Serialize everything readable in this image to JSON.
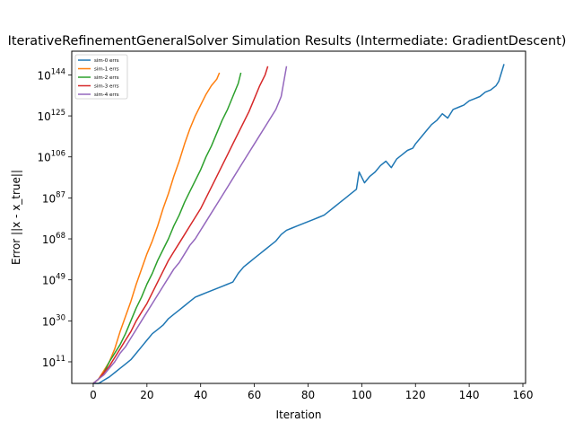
{
  "chart_data": {
    "type": "line",
    "title": "IterativeRefinementGeneralSolver Simulation Results (Intermediate: GradientDescent)",
    "xlabel": "Iteration",
    "ylabel": "Error ||x - x_true||",
    "xlim": [
      -8,
      161
    ],
    "x_ticks": [
      0,
      20,
      40,
      60,
      80,
      100,
      120,
      140,
      160
    ],
    "y_scale": "log",
    "ylim_exponent": [
      1,
      155
    ],
    "y_tick_exponents": [
      11,
      30,
      49,
      68,
      87,
      106,
      125,
      144
    ],
    "y_tick_labels": [
      "10",
      "10",
      "10",
      "10",
      "10",
      "10",
      "10",
      "10"
    ],
    "y_tick_superscripts": [
      "11",
      "30",
      "49",
      "68",
      "87",
      "106",
      "125",
      "144"
    ],
    "grid": false,
    "legend_position": "top-left",
    "series": [
      {
        "name": "sim-0 errs",
        "color": "#1f77b4",
        "log10_values": [
          [
            0,
            1
          ],
          [
            2,
            1
          ],
          [
            4,
            2.5
          ],
          [
            6,
            4
          ],
          [
            8,
            6
          ],
          [
            10,
            8
          ],
          [
            12,
            10
          ],
          [
            14,
            12
          ],
          [
            16,
            15
          ],
          [
            18,
            18
          ],
          [
            20,
            21
          ],
          [
            22,
            24
          ],
          [
            24,
            26
          ],
          [
            26,
            28
          ],
          [
            28,
            31
          ],
          [
            30,
            33
          ],
          [
            32,
            35
          ],
          [
            34,
            37
          ],
          [
            36,
            39
          ],
          [
            38,
            41
          ],
          [
            40,
            42
          ],
          [
            42,
            43
          ],
          [
            44,
            44
          ],
          [
            46,
            45
          ],
          [
            48,
            46
          ],
          [
            50,
            47
          ],
          [
            52,
            48
          ],
          [
            54,
            52
          ],
          [
            56,
            55
          ],
          [
            58,
            57
          ],
          [
            60,
            59
          ],
          [
            62,
            61
          ],
          [
            64,
            63
          ],
          [
            66,
            65
          ],
          [
            68,
            67
          ],
          [
            70,
            70
          ],
          [
            72,
            72
          ],
          [
            74,
            73
          ],
          [
            76,
            74
          ],
          [
            78,
            75
          ],
          [
            80,
            76
          ],
          [
            82,
            77
          ],
          [
            84,
            78
          ],
          [
            86,
            79
          ],
          [
            88,
            81
          ],
          [
            90,
            83
          ],
          [
            92,
            85
          ],
          [
            94,
            87
          ],
          [
            96,
            89
          ],
          [
            98,
            91
          ],
          [
            99,
            99
          ],
          [
            101,
            94
          ],
          [
            103,
            97
          ],
          [
            105,
            99
          ],
          [
            107,
            102
          ],
          [
            109,
            104
          ],
          [
            111,
            101
          ],
          [
            113,
            105
          ],
          [
            115,
            107
          ],
          [
            117,
            109
          ],
          [
            119,
            110
          ],
          [
            120,
            112
          ],
          [
            122,
            115
          ],
          [
            124,
            118
          ],
          [
            126,
            121
          ],
          [
            128,
            123
          ],
          [
            130,
            126
          ],
          [
            132,
            124
          ],
          [
            134,
            128
          ],
          [
            136,
            129
          ],
          [
            138,
            130
          ],
          [
            140,
            132
          ],
          [
            142,
            133
          ],
          [
            144,
            134
          ],
          [
            146,
            136
          ],
          [
            148,
            137
          ],
          [
            150,
            139
          ],
          [
            151,
            141
          ],
          [
            153,
            149
          ]
        ]
      },
      {
        "name": "sim-1 errs",
        "color": "#ff7f0e",
        "log10_values": [
          [
            0,
            1
          ],
          [
            2,
            3
          ],
          [
            4,
            7
          ],
          [
            6,
            11
          ],
          [
            8,
            17
          ],
          [
            10,
            25
          ],
          [
            12,
            32
          ],
          [
            14,
            39
          ],
          [
            16,
            47
          ],
          [
            18,
            54
          ],
          [
            20,
            61
          ],
          [
            22,
            67
          ],
          [
            24,
            74
          ],
          [
            26,
            82
          ],
          [
            28,
            89
          ],
          [
            30,
            97
          ],
          [
            32,
            104
          ],
          [
            34,
            112
          ],
          [
            36,
            119
          ],
          [
            38,
            125
          ],
          [
            40,
            130
          ],
          [
            42,
            135
          ],
          [
            44,
            139
          ],
          [
            46,
            142
          ],
          [
            47,
            145
          ]
        ]
      },
      {
        "name": "sim-2 errs",
        "color": "#2ca02c",
        "log10_values": [
          [
            0,
            1
          ],
          [
            2,
            3
          ],
          [
            4,
            6
          ],
          [
            6,
            11
          ],
          [
            8,
            15
          ],
          [
            10,
            19
          ],
          [
            12,
            24
          ],
          [
            14,
            30
          ],
          [
            16,
            36
          ],
          [
            18,
            41
          ],
          [
            20,
            47
          ],
          [
            22,
            52
          ],
          [
            24,
            58
          ],
          [
            26,
            63
          ],
          [
            28,
            68
          ],
          [
            30,
            74
          ],
          [
            32,
            79
          ],
          [
            34,
            85
          ],
          [
            36,
            90
          ],
          [
            38,
            95
          ],
          [
            40,
            100
          ],
          [
            42,
            106
          ],
          [
            44,
            111
          ],
          [
            46,
            117
          ],
          [
            48,
            123
          ],
          [
            50,
            128
          ],
          [
            52,
            134
          ],
          [
            54,
            140
          ],
          [
            55,
            145
          ]
        ]
      },
      {
        "name": "sim-3 errs",
        "color": "#d62728",
        "log10_values": [
          [
            0,
            1
          ],
          [
            2,
            3
          ],
          [
            4,
            6
          ],
          [
            6,
            9
          ],
          [
            8,
            13
          ],
          [
            10,
            17
          ],
          [
            12,
            21
          ],
          [
            14,
            25
          ],
          [
            16,
            30
          ],
          [
            18,
            34
          ],
          [
            20,
            38
          ],
          [
            22,
            43
          ],
          [
            24,
            48
          ],
          [
            26,
            53
          ],
          [
            28,
            58
          ],
          [
            30,
            62
          ],
          [
            32,
            66
          ],
          [
            34,
            70
          ],
          [
            36,
            74
          ],
          [
            38,
            78
          ],
          [
            40,
            82
          ],
          [
            42,
            87
          ],
          [
            44,
            92
          ],
          [
            46,
            97
          ],
          [
            48,
            102
          ],
          [
            50,
            107
          ],
          [
            52,
            112
          ],
          [
            54,
            117
          ],
          [
            56,
            122
          ],
          [
            58,
            127
          ],
          [
            60,
            133
          ],
          [
            62,
            139
          ],
          [
            64,
            144
          ],
          [
            65,
            148
          ]
        ]
      },
      {
        "name": "sim-4 errs",
        "color": "#9467bd",
        "log10_values": [
          [
            0,
            1
          ],
          [
            2,
            3
          ],
          [
            4,
            5
          ],
          [
            6,
            8
          ],
          [
            8,
            11
          ],
          [
            10,
            15
          ],
          [
            12,
            18
          ],
          [
            14,
            22
          ],
          [
            16,
            26
          ],
          [
            18,
            30
          ],
          [
            20,
            34
          ],
          [
            22,
            38
          ],
          [
            24,
            42
          ],
          [
            26,
            46
          ],
          [
            28,
            50
          ],
          [
            30,
            54
          ],
          [
            32,
            57
          ],
          [
            34,
            61
          ],
          [
            36,
            65
          ],
          [
            38,
            68
          ],
          [
            40,
            72
          ],
          [
            42,
            76
          ],
          [
            44,
            80
          ],
          [
            46,
            84
          ],
          [
            48,
            88
          ],
          [
            50,
            92
          ],
          [
            52,
            96
          ],
          [
            54,
            100
          ],
          [
            56,
            104
          ],
          [
            58,
            108
          ],
          [
            60,
            112
          ],
          [
            62,
            116
          ],
          [
            64,
            120
          ],
          [
            66,
            124
          ],
          [
            68,
            128
          ],
          [
            70,
            134
          ],
          [
            72,
            148
          ]
        ]
      }
    ]
  }
}
